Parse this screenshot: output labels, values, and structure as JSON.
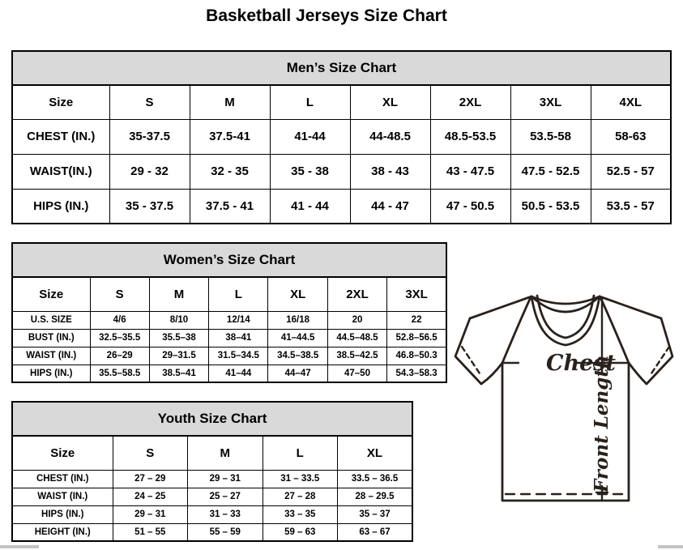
{
  "page_title": "Basketball Jerseys Size Chart",
  "tables": [
    {
      "id": "mens",
      "title": "Men’s Size Chart",
      "columns": [
        "Size",
        "S",
        "M",
        "L",
        "XL",
        "2XL",
        "3XL",
        "4XL"
      ],
      "rows": [
        {
          "label": "CHEST (IN.)",
          "values": [
            "35-37.5",
            "37.5-41",
            "41-44",
            "44-48.5",
            "48.5-53.5",
            "53.5-58",
            "58-63"
          ]
        },
        {
          "label": "WAIST(IN.)",
          "values": [
            "29 - 32",
            "32 - 35",
            "35 - 38",
            "38 - 43",
            "43 - 47.5",
            "47.5 - 52.5",
            "52.5 - 57"
          ]
        },
        {
          "label": "HIPS (IN.)",
          "values": [
            "35 - 37.5",
            "37.5 - 41",
            "41 - 44",
            "44 - 47",
            "47 - 50.5",
            "50.5 - 53.5",
            "53.5 - 57"
          ]
        }
      ]
    },
    {
      "id": "womens",
      "title": "Women’s Size Chart",
      "columns": [
        "Size",
        "S",
        "M",
        "L",
        "XL",
        "2XL",
        "3XL"
      ],
      "rows": [
        {
          "label": "U.S. SIZE",
          "values": [
            "4/6",
            "8/10",
            "12/14",
            "16/18",
            "20",
            "22"
          ]
        },
        {
          "label": "BUST (IN.)",
          "values": [
            "32.5–35.5",
            "35.5–38",
            "38–41",
            "41–44.5",
            "44.5–48.5",
            "52.8–56.5"
          ]
        },
        {
          "label": "WAIST (IN.)",
          "values": [
            "26–29",
            "29–31.5",
            "31.5–34.5",
            "34.5–38.5",
            "38.5–42.5",
            "46.8–50.3"
          ]
        },
        {
          "label": "HIPS (IN.)",
          "values": [
            "35.5–58.5",
            "38.5–41",
            "41–44",
            "44–47",
            "47–50",
            "54.3–58.3"
          ]
        }
      ]
    },
    {
      "id": "youth",
      "title": "Youth Size Chart",
      "columns": [
        "Size",
        "S",
        "M",
        "L",
        "XL"
      ],
      "rows": [
        {
          "label": "CHEST (IN.)",
          "values": [
            "27 – 29",
            "29 – 31",
            "31 – 33.5",
            "33.5 – 36.5"
          ]
        },
        {
          "label": "WAIST (IN.)",
          "values": [
            "24 – 25",
            "25 – 27",
            "27 – 28",
            "28 – 29.5"
          ]
        },
        {
          "label": "HIPS (IN.)",
          "values": [
            "29 – 31",
            "31 – 33",
            "33 – 35",
            "35 – 37"
          ]
        },
        {
          "label": "HEIGHT (IN.)",
          "values": [
            "51 – 55",
            "55 – 59",
            "59 – 63",
            "63 – 67"
          ]
        }
      ]
    }
  ],
  "diagram": {
    "chest_label": "Chest",
    "front_length_label": "Front Length"
  },
  "colors": {
    "table_header_bg": "#d9d9d9",
    "table_border": "#000000",
    "diagram_stroke": "#2a211c",
    "bottom_fragment": "#c4c4c4"
  }
}
